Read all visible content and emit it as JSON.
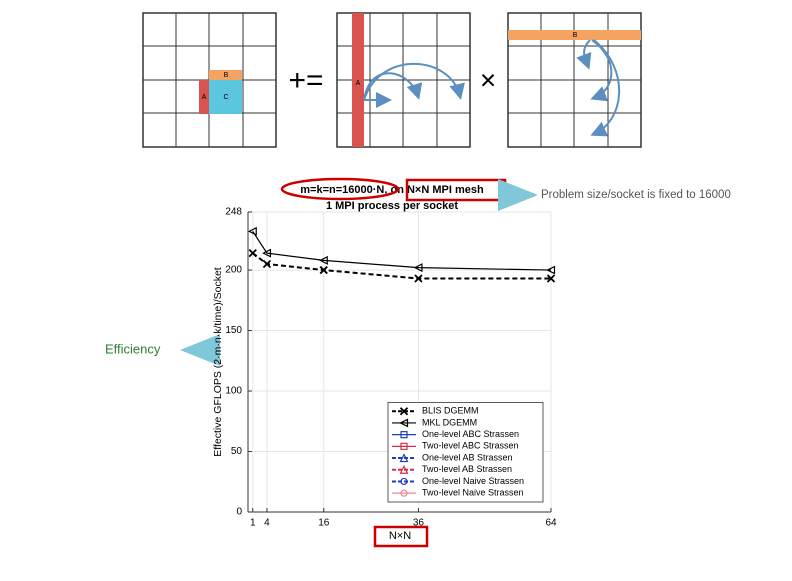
{
  "diagram": {
    "labels": [
      "B",
      "A",
      "C",
      "+=",
      "A",
      "×",
      "B"
    ]
  },
  "annotations": [
    "Problem size/socket is fixed to 16000",
    "Efficiency"
  ],
  "chart_data": {
    "type": "line",
    "title": "m=k=n=16000·N, on N×N MPI mesh",
    "subtitle": "1 MPI process per socket",
    "x_label": "N×N",
    "y_label": "Effective GFLOPS (2·m·n·k/time)/Socket",
    "x": [
      1,
      4,
      16,
      36,
      64
    ],
    "xlim": [
      0,
      64
    ],
    "xticks": [
      1,
      4,
      16,
      36,
      64
    ],
    "ylim": [
      0,
      248
    ],
    "yticks": [
      0,
      50,
      100,
      150,
      200,
      248
    ],
    "grid": true,
    "legend": "lower right",
    "series": [
      {
        "name": "BLIS DGEMM",
        "color": "#000000",
        "marker": "x",
        "dash": true,
        "values": [
          214,
          205,
          200,
          193,
          193
        ]
      },
      {
        "name": "MKL DGEMM",
        "color": "#000000",
        "marker": "triangle-left",
        "dash": false,
        "values": [
          232,
          214,
          208,
          202,
          200
        ]
      },
      {
        "name": "One-level ABC Strassen",
        "color": "#1f3fbf",
        "marker": "square",
        "dash": false,
        "values": [
          null,
          null,
          null,
          null,
          null
        ]
      },
      {
        "name": "Two-level ABC Strassen",
        "color": "#d62f4a",
        "marker": "square",
        "dash": false,
        "values": [
          null,
          null,
          null,
          null,
          null
        ]
      },
      {
        "name": "One-level AB Strassen",
        "color": "#1f3fbf",
        "marker": "triangle-up",
        "dash": true,
        "values": [
          null,
          null,
          null,
          null,
          null
        ]
      },
      {
        "name": "Two-level AB Strassen",
        "color": "#d62f4a",
        "marker": "triangle-up",
        "dash": true,
        "values": [
          null,
          null,
          null,
          null,
          null
        ]
      },
      {
        "name": "One-level Naive Strassen",
        "color": "#1f3fbf",
        "marker": "circle",
        "dash": true,
        "values": [
          null,
          null,
          null,
          null,
          null
        ]
      },
      {
        "name": "Two-level Naive Strassen",
        "color": "#e88a9a",
        "marker": "circle",
        "dash": false,
        "values": [
          null,
          null,
          null,
          null,
          null
        ]
      }
    ]
  }
}
